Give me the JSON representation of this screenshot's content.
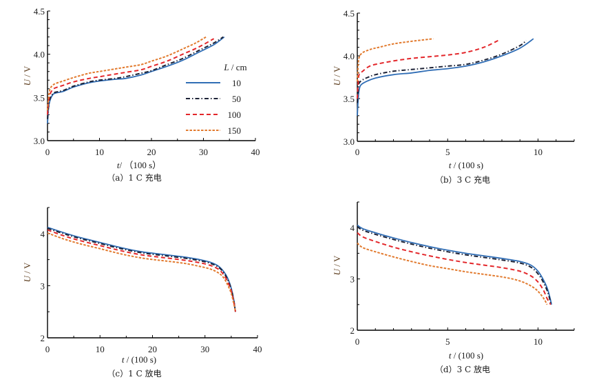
{
  "figure": {
    "series_styles": [
      {
        "name": "10",
        "color": "#2f6db5",
        "dash": ""
      },
      {
        "name": "50",
        "color": "#1c2236",
        "dash": "6 3 1.5 3"
      },
      {
        "name": "100",
        "color": "#e3262a",
        "dash": "6 4"
      },
      {
        "name": "150",
        "color": "#e27a2e",
        "dash": "3.5 2"
      }
    ],
    "legend": {
      "title_italic": "L",
      "title_rest": " / cm",
      "placement": "center-right of panel (a)"
    }
  },
  "chart_data": [
    {
      "type": "line",
      "panel": "a",
      "caption": "（a）1  C 充电",
      "xlabel_italic": "t",
      "xlabel_rest": "/  （100 s）",
      "ylabel_italic": "U",
      "ylabel_rest": " / V",
      "xlim": [
        0,
        40
      ],
      "ylim": [
        3.0,
        4.5
      ],
      "xticks": [
        0,
        10,
        20,
        30,
        40
      ],
      "xtick_labels": [
        "0",
        "10",
        "20",
        "30",
        "40"
      ],
      "xminor": 5,
      "yticks": [
        3.0,
        3.5,
        4.0,
        4.5
      ],
      "ytick_labels": [
        "3.0",
        "3.5",
        "4.0",
        "4.5"
      ],
      "yminor": 0.1,
      "legend_visible": true,
      "series": [
        {
          "name": "10",
          "x": [
            0,
            0.2,
            0.5,
            1,
            1.5,
            3,
            5,
            8,
            10,
            13,
            15,
            18,
            20,
            23,
            26,
            29,
            32,
            34
          ],
          "y": [
            3.2,
            3.38,
            3.47,
            3.53,
            3.55,
            3.57,
            3.62,
            3.67,
            3.69,
            3.71,
            3.72,
            3.76,
            3.8,
            3.86,
            3.93,
            4.02,
            4.11,
            4.2
          ]
        },
        {
          "name": "50",
          "x": [
            0,
            0.2,
            0.5,
            1,
            1.5,
            3,
            5,
            8,
            10,
            13,
            15,
            18,
            20,
            23,
            26,
            29,
            32,
            33.8
          ],
          "y": [
            3.25,
            3.4,
            3.49,
            3.54,
            3.56,
            3.58,
            3.63,
            3.68,
            3.7,
            3.72,
            3.74,
            3.78,
            3.81,
            3.88,
            3.95,
            4.04,
            4.13,
            4.2
          ]
        },
        {
          "name": "100",
          "x": [
            0,
            0.2,
            0.5,
            1,
            1.5,
            3,
            5,
            8,
            10,
            13,
            15,
            18,
            20,
            23,
            26,
            29,
            32
          ],
          "y": [
            3.3,
            3.45,
            3.54,
            3.59,
            3.61,
            3.64,
            3.68,
            3.72,
            3.74,
            3.77,
            3.79,
            3.82,
            3.86,
            3.92,
            4.0,
            4.08,
            4.18
          ]
        },
        {
          "name": "150",
          "x": [
            0,
            0.2,
            0.5,
            1,
            1.5,
            3,
            5,
            8,
            10,
            13,
            15,
            18,
            20,
            23,
            26,
            28.5,
            30.5
          ],
          "y": [
            3.35,
            3.5,
            3.6,
            3.64,
            3.66,
            3.69,
            3.73,
            3.78,
            3.8,
            3.83,
            3.85,
            3.88,
            3.92,
            3.98,
            4.06,
            4.13,
            4.2
          ]
        }
      ]
    },
    {
      "type": "line",
      "panel": "b",
      "caption": "（b）3  C 充电",
      "xlabel_italic": "t",
      "xlabel_rest": " / (100 s)",
      "ylabel_italic": "U",
      "ylabel_rest": " / V",
      "xlim": [
        0,
        12
      ],
      "ylim": [
        3.0,
        4.5
      ],
      "xticks": [
        0,
        5,
        10
      ],
      "xtick_labels": [
        "0",
        "5",
        "10"
      ],
      "xminor": 1,
      "yticks": [
        3.0,
        3.5,
        4.0,
        4.5
      ],
      "ytick_labels": [
        "3.0",
        "3.5",
        "4.0",
        "4.5"
      ],
      "yminor": 0.1,
      "legend_visible": false,
      "series": [
        {
          "name": "10",
          "x": [
            0,
            0.05,
            0.1,
            0.2,
            0.5,
            1,
            2,
            3,
            4,
            5,
            6,
            7,
            8,
            9,
            9.75
          ],
          "y": [
            3.3,
            3.5,
            3.6,
            3.66,
            3.7,
            3.74,
            3.78,
            3.8,
            3.83,
            3.85,
            3.88,
            3.93,
            4.0,
            4.09,
            4.2
          ]
        },
        {
          "name": "50",
          "x": [
            0,
            0.05,
            0.1,
            0.3,
            0.6,
            1,
            2,
            3,
            4,
            5,
            6,
            7,
            8,
            9,
            9.35
          ],
          "y": [
            3.45,
            3.6,
            3.68,
            3.72,
            3.75,
            3.78,
            3.82,
            3.84,
            3.86,
            3.88,
            3.9,
            3.95,
            4.02,
            4.12,
            4.18
          ]
        },
        {
          "name": "100",
          "x": [
            0,
            0.05,
            0.1,
            0.3,
            0.6,
            1,
            2,
            3,
            4,
            5,
            6,
            7,
            7.8
          ],
          "y": [
            3.5,
            3.7,
            3.78,
            3.82,
            3.87,
            3.9,
            3.94,
            3.97,
            3.99,
            4.01,
            4.04,
            4.1,
            4.18
          ]
        },
        {
          "name": "150",
          "x": [
            0,
            0.05,
            0.1,
            0.2,
            0.4,
            0.8,
            1.2,
            2,
            3,
            4.2
          ],
          "y": [
            3.7,
            3.9,
            3.98,
            4.02,
            4.05,
            4.08,
            4.1,
            4.14,
            4.17,
            4.2
          ]
        }
      ]
    },
    {
      "type": "line",
      "panel": "c",
      "caption": "（c）1  C 放电",
      "xlabel_italic": "t",
      "xlabel_rest": " / (100 s)",
      "ylabel_italic": "U",
      "ylabel_rest": " / V",
      "xlim": [
        0,
        40
      ],
      "ylim": [
        2,
        4.5
      ],
      "xticks": [
        0,
        10,
        20,
        30,
        40
      ],
      "xtick_labels": [
        "0",
        "10",
        "20",
        "30",
        "40"
      ],
      "xminor": 5,
      "yticks": [
        2,
        3,
        4
      ],
      "ytick_labels": [
        "2",
        "3",
        "4"
      ],
      "yminor": 0.5,
      "legend_visible": false,
      "series": [
        {
          "name": "10",
          "x": [
            0,
            3,
            6,
            10,
            14,
            18,
            22,
            26,
            29,
            31,
            32.5,
            33.5,
            34.3,
            35,
            35.5,
            35.8
          ],
          "y": [
            4.12,
            4.02,
            3.93,
            3.83,
            3.73,
            3.65,
            3.6,
            3.55,
            3.5,
            3.45,
            3.38,
            3.28,
            3.15,
            2.95,
            2.72,
            2.5
          ]
        },
        {
          "name": "50",
          "x": [
            0,
            3,
            6,
            10,
            14,
            18,
            22,
            26,
            29,
            31,
            32.5,
            33.5,
            34.3,
            35,
            35.5,
            35.8
          ],
          "y": [
            4.1,
            4.0,
            3.91,
            3.81,
            3.71,
            3.63,
            3.58,
            3.53,
            3.48,
            3.43,
            3.36,
            3.26,
            3.12,
            2.93,
            2.7,
            2.5
          ]
        },
        {
          "name": "100",
          "x": [
            0,
            3,
            6,
            10,
            14,
            18,
            22,
            26,
            29,
            31,
            32.5,
            33.5,
            34.3,
            35,
            35.5,
            35.8
          ],
          "y": [
            4.07,
            3.96,
            3.87,
            3.77,
            3.67,
            3.59,
            3.54,
            3.49,
            3.44,
            3.39,
            3.32,
            3.22,
            3.08,
            2.9,
            2.68,
            2.5
          ]
        },
        {
          "name": "150",
          "x": [
            0,
            3,
            6,
            10,
            14,
            18,
            22,
            26,
            29,
            31,
            32.5,
            33.5,
            34.3,
            35,
            35.5,
            35.8
          ],
          "y": [
            4.01,
            3.9,
            3.81,
            3.71,
            3.61,
            3.53,
            3.48,
            3.43,
            3.37,
            3.32,
            3.25,
            3.16,
            3.02,
            2.85,
            2.65,
            2.5
          ]
        }
      ]
    },
    {
      "type": "line",
      "panel": "d",
      "caption": "（d）3  C 放电",
      "xlabel_italic": "t",
      "xlabel_rest": " / (100 s)",
      "ylabel_italic": "U",
      "ylabel_rest": " / V",
      "xlim": [
        0,
        12
      ],
      "ylim": [
        2,
        4.5
      ],
      "xticks": [
        0,
        5,
        10
      ],
      "xtick_labels": [
        "0",
        "5",
        "10"
      ],
      "xminor": 1,
      "yticks": [
        2,
        3,
        4
      ],
      "ytick_labels": [
        "2",
        "3",
        "4"
      ],
      "yminor": 0.5,
      "legend_visible": false,
      "series": [
        {
          "name": "10",
          "x": [
            0,
            0.3,
            1,
            2,
            3,
            4,
            5,
            6,
            7,
            8,
            9,
            9.6,
            10,
            10.3,
            10.55,
            10.75
          ],
          "y": [
            4.05,
            3.98,
            3.9,
            3.8,
            3.71,
            3.63,
            3.56,
            3.5,
            3.45,
            3.4,
            3.34,
            3.27,
            3.15,
            2.98,
            2.78,
            2.5
          ]
        },
        {
          "name": "50",
          "x": [
            0,
            0.3,
            1,
            2,
            3,
            4,
            5,
            6,
            7,
            8,
            9,
            9.6,
            10,
            10.3,
            10.55,
            10.72
          ],
          "y": [
            4.02,
            3.95,
            3.87,
            3.77,
            3.68,
            3.6,
            3.53,
            3.47,
            3.42,
            3.37,
            3.31,
            3.23,
            3.1,
            2.93,
            2.73,
            2.5
          ]
        },
        {
          "name": "100",
          "x": [
            0,
            0.3,
            1,
            2,
            3,
            4,
            5,
            6,
            7,
            8,
            9,
            9.6,
            10,
            10.3,
            10.5,
            10.7
          ],
          "y": [
            3.9,
            3.82,
            3.73,
            3.62,
            3.53,
            3.45,
            3.38,
            3.32,
            3.27,
            3.22,
            3.15,
            3.06,
            2.94,
            2.78,
            2.62,
            2.5
          ]
        },
        {
          "name": "150",
          "x": [
            0,
            0.3,
            1,
            2,
            3,
            4,
            5,
            6,
            7,
            8,
            8.7,
            9.3,
            9.8,
            10.1,
            10.35,
            10.5
          ],
          "y": [
            3.7,
            3.61,
            3.53,
            3.43,
            3.34,
            3.26,
            3.2,
            3.14,
            3.09,
            3.04,
            2.99,
            2.92,
            2.82,
            2.72,
            2.6,
            2.5
          ]
        }
      ]
    }
  ]
}
